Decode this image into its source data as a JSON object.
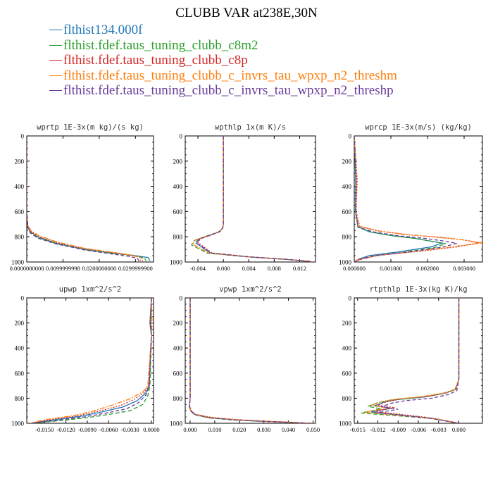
{
  "title": "CLUBB VAR at238E,30N",
  "legend": [
    {
      "label": "flthist134.000f",
      "color": "#1f77b4"
    },
    {
      "label": "flthist.fdef.taus_tuning_clubb_c8m2",
      "color": "#2ca02c"
    },
    {
      "label": "flthist.fdef.taus_tuning_clubb_c8p",
      "color": "#d62728"
    },
    {
      "label": "flthist.fdef.taus_tuning_clubb_c_invrs_tau_wpxp_n2_threshm",
      "color": "#ff7f0e"
    },
    {
      "label": "flthist.fdef.taus_tuning_clubb_c_invrs_tau_wpxp_n2_threshp",
      "color": "#6a3d9a"
    }
  ],
  "colors": {
    "series": [
      "#1f77b4",
      "#2ca02c",
      "#d62728",
      "#ff7f0e",
      "#6a3d9a"
    ],
    "dark": "#202020"
  },
  "chart_data": [
    {
      "type": "line",
      "title": "wprtp  1E-3x(m kg)/(s kg)",
      "xlim": [
        0.0,
        0.035
      ],
      "ylim": [
        1000,
        0
      ],
      "xticks": [
        0.0,
        0.0099999998,
        0.02,
        0.0299999999
      ],
      "xtick_labels": [
        "0.0000000000",
        "0.0099999998",
        "0.0200000000",
        "0.0299999900"
      ],
      "yticks": [
        0,
        200,
        400,
        600,
        800,
        1000
      ],
      "series": [
        {
          "x": [
            0,
            0,
            0.0003,
            0.001,
            0.003,
            0.008,
            0.016,
            0.024,
            0.03,
            0.0335,
            0.034
          ],
          "y": [
            0,
            600,
            720,
            760,
            800,
            850,
            900,
            930,
            950,
            965,
            990
          ]
        },
        {
          "x": [
            0,
            0,
            0.0003,
            0.001,
            0.003,
            0.008,
            0.016,
            0.024,
            0.03,
            0.0325,
            0.033
          ],
          "y": [
            0,
            600,
            725,
            765,
            805,
            853,
            903,
            932,
            952,
            968,
            992
          ]
        },
        {
          "x": [
            0,
            0,
            0.0003,
            0.001,
            0.003,
            0.008,
            0.016,
            0.024,
            0.029,
            0.0318,
            0.032
          ],
          "y": [
            0,
            600,
            715,
            755,
            795,
            845,
            895,
            926,
            948,
            966,
            992
          ]
        },
        {
          "x": [
            0,
            0,
            0.0003,
            0.0012,
            0.0035,
            0.0085,
            0.016,
            0.024,
            0.029,
            0.0312,
            0.0314
          ],
          "y": [
            0,
            600,
            712,
            752,
            792,
            842,
            892,
            924,
            946,
            965,
            992
          ]
        },
        {
          "x": [
            0,
            0,
            0.0003,
            0.001,
            0.003,
            0.008,
            0.016,
            0.023,
            0.028,
            0.0305,
            0.031
          ],
          "y": [
            0,
            600,
            730,
            770,
            810,
            856,
            905,
            934,
            955,
            970,
            993
          ]
        }
      ]
    },
    {
      "type": "line",
      "title": "wpthlp  1x(m K)/s",
      "xlim": [
        -0.006,
        0.0145
      ],
      "ylim": [
        1000,
        0
      ],
      "xticks": [
        -0.004,
        0.0,
        0.004,
        0.008,
        0.012
      ],
      "xtick_labels": [
        "-0.004",
        "0.000",
        "0.004",
        "0.008",
        "0.012"
      ],
      "yticks": [
        0,
        200,
        400,
        600,
        800,
        1000
      ],
      "series": [
        {
          "x": [
            0,
            0,
            -0.0001,
            -0.0006,
            -0.0022,
            -0.004,
            -0.0043,
            -0.002,
            0.004,
            0.01,
            0.0135
          ],
          "y": [
            0,
            700,
            730,
            760,
            790,
            820,
            850,
            930,
            960,
            980,
            995
          ]
        },
        {
          "x": [
            0,
            0,
            -0.0001,
            -0.0008,
            -0.0026,
            -0.0046,
            -0.005,
            -0.0025,
            0.004,
            0.01,
            0.0135
          ],
          "y": [
            0,
            700,
            733,
            763,
            793,
            830,
            865,
            930,
            960,
            980,
            995
          ]
        },
        {
          "x": [
            0,
            0,
            -0.0001,
            -0.0005,
            -0.002,
            -0.0036,
            -0.004,
            -0.0018,
            0.004,
            0.01,
            0.0138
          ],
          "y": [
            0,
            700,
            728,
            758,
            788,
            815,
            845,
            928,
            958,
            979,
            995
          ]
        },
        {
          "x": [
            0,
            0,
            -0.0001,
            -0.0007,
            -0.0024,
            -0.0044,
            -0.0048,
            -0.0022,
            0.004,
            0.01,
            0.0136
          ],
          "y": [
            0,
            700,
            731,
            761,
            791,
            825,
            858,
            930,
            960,
            980,
            995
          ]
        },
        {
          "x": [
            0,
            0,
            -0.0001,
            -0.0006,
            -0.0021,
            -0.0038,
            -0.0042,
            -0.0019,
            0.004,
            0.01,
            0.0134
          ],
          "y": [
            0,
            700,
            729,
            759,
            789,
            818,
            850,
            929,
            959,
            979,
            995
          ]
        }
      ]
    },
    {
      "type": "line",
      "title": "wprcp  1E-3x(m/s) (kg/kg)",
      "xlim": [
        0.0,
        0.0035
      ],
      "ylim": [
        1000,
        0
      ],
      "xticks": [
        0.0,
        0.001,
        0.002,
        0.003
      ],
      "xtick_labels": [
        "0.000000",
        "0.001000",
        "0.002000",
        "0.003000"
      ],
      "yticks": [
        0,
        200,
        400,
        600,
        800,
        1000
      ],
      "series": [
        {
          "x": [
            0,
            4e-05,
            3e-05,
            0.0001,
            0.0004,
            0.001,
            0.0016,
            0.002,
            0.0024,
            0.0021,
            0.0012,
            0.0004,
            0.0001,
            0
          ],
          "y": [
            0,
            350,
            600,
            720,
            760,
            790,
            810,
            830,
            850,
            880,
            920,
            950,
            980,
            1000
          ]
        },
        {
          "x": [
            0,
            5e-05,
            4e-05,
            0.0001,
            0.0005,
            0.0011,
            0.0017,
            0.0021,
            0.0025,
            0.0022,
            0.0013,
            0.0005,
            0.0001,
            0
          ],
          "y": [
            0,
            350,
            600,
            725,
            765,
            795,
            815,
            835,
            855,
            885,
            925,
            955,
            982,
            1000
          ]
        },
        {
          "x": [
            0,
            8e-05,
            5e-05,
            0.00015,
            0.0007,
            0.0015,
            0.0024,
            0.003,
            0.0034,
            0.0028,
            0.0018,
            0.0007,
            0.0002,
            0
          ],
          "y": [
            0,
            350,
            600,
            718,
            755,
            785,
            805,
            825,
            850,
            880,
            915,
            945,
            978,
            1000
          ]
        },
        {
          "x": [
            0,
            6e-05,
            4e-05,
            0.00012,
            0.0006,
            0.0014,
            0.0022,
            0.0029,
            0.0035,
            0.0027,
            0.0017,
            0.0006,
            0.0001,
            0
          ],
          "y": [
            0,
            350,
            600,
            715,
            752,
            782,
            802,
            822,
            848,
            878,
            915,
            948,
            980,
            1000
          ]
        },
        {
          "x": [
            0,
            5e-05,
            4e-05,
            0.0001,
            0.0005,
            0.0012,
            0.0019,
            0.0024,
            0.0028,
            0.0024,
            0.0015,
            0.0005,
            0.0001,
            0
          ],
          "y": [
            0,
            350,
            600,
            722,
            760,
            792,
            812,
            832,
            852,
            882,
            920,
            952,
            982,
            1000
          ]
        }
      ]
    },
    {
      "type": "line",
      "title": "upwp  1xm^2/s^2",
      "xlim": [
        -0.0175,
        0.0003
      ],
      "ylim": [
        1000,
        0
      ],
      "xticks": [
        -0.015,
        -0.012,
        -0.009,
        -0.006,
        -0.003,
        0.0
      ],
      "xtick_labels": [
        "-0.0150",
        "-0.0120",
        "-0.0090",
        "-0.0060",
        "-0.0030",
        "0.0000"
      ],
      "yticks": [
        0,
        200,
        400,
        600,
        800,
        1000
      ],
      "series": [
        {
          "x": [
            0,
            -0.0002,
            0,
            -0.0003,
            -0.0008,
            -0.002,
            -0.004,
            -0.007,
            -0.01,
            -0.014,
            -0.017
          ],
          "y": [
            0,
            200,
            300,
            700,
            760,
            820,
            870,
            910,
            945,
            975,
            1000
          ]
        },
        {
          "x": [
            0,
            -0.0001,
            0,
            -0.0002,
            -0.0005,
            -0.0012,
            -0.003,
            -0.006,
            -0.009,
            -0.013,
            -0.017
          ],
          "y": [
            0,
            200,
            300,
            700,
            780,
            850,
            900,
            930,
            955,
            980,
            1000
          ]
        },
        {
          "x": [
            0,
            -0.0002,
            0,
            -0.0004,
            -0.001,
            -0.0025,
            -0.0045,
            -0.0075,
            -0.0105,
            -0.0145,
            -0.017
          ],
          "y": [
            0,
            200,
            300,
            700,
            755,
            812,
            862,
            905,
            942,
            973,
            1000
          ]
        },
        {
          "x": [
            0,
            0.0001,
            0,
            -0.0005,
            -0.0012,
            -0.003,
            -0.0055,
            -0.008,
            -0.011,
            -0.015,
            -0.017
          ],
          "y": [
            0,
            200,
            300,
            700,
            750,
            805,
            855,
            900,
            940,
            972,
            1000
          ]
        },
        {
          "x": [
            0,
            -0.0001,
            0,
            -0.0003,
            -0.0007,
            -0.0018,
            -0.0035,
            -0.0065,
            -0.0095,
            -0.0135,
            -0.017
          ],
          "y": [
            0,
            200,
            300,
            700,
            770,
            835,
            885,
            920,
            950,
            978,
            1000
          ]
        }
      ]
    },
    {
      "type": "line",
      "title": "vpwp  1xm^2/s^2",
      "xlim": [
        -0.002,
        0.051
      ],
      "ylim": [
        1000,
        0
      ],
      "xticks": [
        0.0,
        0.01,
        0.02,
        0.03,
        0.04,
        0.05
      ],
      "xtick_labels": [
        "0.000",
        "0.010",
        "0.020",
        "0.030",
        "0.040",
        "0.050"
      ],
      "yticks": [
        0,
        200,
        400,
        600,
        800,
        1000
      ],
      "series": [
        {
          "x": [
            0,
            0,
            -0.0003,
            0.0003,
            0.002,
            0.008,
            0.018,
            0.03,
            0.042,
            0.049
          ],
          "y": [
            0,
            800,
            860,
            900,
            930,
            955,
            972,
            984,
            994,
            1000
          ]
        },
        {
          "x": [
            0,
            0,
            -0.0004,
            0.0002,
            0.0018,
            0.0075,
            0.017,
            0.029,
            0.041,
            0.049
          ],
          "y": [
            0,
            800,
            862,
            902,
            932,
            957,
            973,
            985,
            994,
            1000
          ]
        },
        {
          "x": [
            0,
            0,
            -0.0002,
            0.0004,
            0.0022,
            0.0085,
            0.019,
            0.031,
            0.043,
            0.05
          ],
          "y": [
            0,
            800,
            858,
            898,
            928,
            953,
            971,
            983,
            993,
            1000
          ]
        },
        {
          "x": [
            0,
            0,
            -0.0003,
            0.0003,
            0.0021,
            0.0082,
            0.0185,
            0.0305,
            0.0425,
            0.0495
          ],
          "y": [
            0,
            800,
            859,
            899,
            929,
            954,
            972,
            984,
            994,
            1000
          ]
        },
        {
          "x": [
            0,
            0,
            -0.0003,
            0.0003,
            0.0019,
            0.0078,
            0.0175,
            0.0295,
            0.0415,
            0.049
          ],
          "y": [
            0,
            800,
            861,
            901,
            931,
            956,
            973,
            985,
            994,
            1000
          ]
        }
      ]
    },
    {
      "type": "line",
      "title": "rtpthlp  1E-3x(kg K)/kg",
      "xlim": [
        -0.0155,
        0.0035
      ],
      "ylim": [
        1000,
        0
      ],
      "xticks": [
        -0.015,
        -0.012,
        -0.009,
        -0.006,
        -0.003,
        0.0
      ],
      "xtick_labels": [
        "-0.015",
        "-0.012",
        "-0.009",
        "-0.006",
        "-0.003",
        "0.000"
      ],
      "yticks": [
        0,
        200,
        400,
        600,
        800,
        1000
      ],
      "series": [
        {
          "x": [
            0,
            0,
            -0.0005,
            -0.002,
            -0.005,
            -0.009,
            -0.011,
            -0.0125,
            -0.01,
            -0.013,
            -0.004,
            -0.001,
            0
          ],
          "y": [
            0,
            650,
            730,
            760,
            790,
            810,
            830,
            860,
            880,
            910,
            960,
            990,
            1000
          ]
        },
        {
          "x": [
            0,
            0,
            -0.0006,
            -0.0025,
            -0.006,
            -0.01,
            -0.012,
            -0.0135,
            -0.0115,
            -0.0145,
            -0.004,
            -0.001,
            0
          ],
          "y": [
            0,
            650,
            735,
            765,
            795,
            815,
            835,
            865,
            885,
            918,
            962,
            990,
            1000
          ]
        },
        {
          "x": [
            0,
            0,
            -0.0004,
            -0.0018,
            -0.0045,
            -0.0085,
            -0.0105,
            -0.012,
            -0.0095,
            -0.0125,
            -0.004,
            -0.001,
            0
          ],
          "y": [
            0,
            650,
            725,
            755,
            785,
            805,
            825,
            855,
            875,
            905,
            958,
            989,
            1000
          ]
        },
        {
          "x": [
            0,
            0,
            -0.0005,
            -0.0022,
            -0.0055,
            -0.0095,
            -0.0115,
            -0.013,
            -0.0105,
            -0.014,
            -0.004,
            -0.001,
            0
          ],
          "y": [
            0,
            650,
            728,
            758,
            788,
            808,
            828,
            858,
            878,
            912,
            960,
            990,
            1000
          ]
        },
        {
          "x": [
            0,
            0,
            -0.0003,
            -0.0015,
            -0.004,
            -0.008,
            -0.01,
            -0.0115,
            -0.009,
            -0.012,
            -0.004,
            -0.001,
            0
          ],
          "y": [
            0,
            650,
            740,
            770,
            800,
            820,
            840,
            868,
            888,
            915,
            963,
            991,
            1000
          ]
        }
      ]
    }
  ]
}
